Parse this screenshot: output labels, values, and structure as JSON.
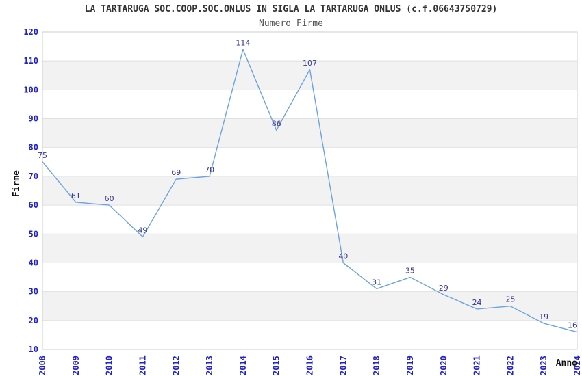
{
  "chart_data": {
    "type": "line",
    "title": "LA TARTARUGA SOC.COOP.SOC.ONLUS IN SIGLA LA TARTARUGA ONLUS (c.f.06643750729)",
    "subtitle": "Numero Firme",
    "xlabel": "Anno",
    "ylabel": "Firme",
    "x": [
      "2008",
      "2009",
      "2010",
      "2011",
      "2012",
      "2013",
      "2014",
      "2015",
      "2016",
      "2017",
      "2018",
      "2019",
      "2020",
      "2021",
      "2022",
      "2023",
      "2024"
    ],
    "series": [
      {
        "name": "Numero Firme",
        "values": [
          75,
          61,
          60,
          49,
          69,
          70,
          114,
          86,
          107,
          40,
          31,
          35,
          29,
          24,
          25,
          19,
          16
        ]
      }
    ],
    "ylim": [
      10,
      120
    ],
    "ytick_step": 10,
    "grid": true,
    "alternating_bands": true,
    "legend_position": "none",
    "point_labels_visible": true,
    "colors": {
      "line": "#6ba3e0",
      "point_label": "#333399",
      "tick_label": "#2222cc",
      "band_fill": "#f2f2f2",
      "grid_line": "#e0e0e0",
      "plot_border": "#cccccc",
      "title": "#333333",
      "subtitle": "#555555",
      "axis_label": "#111111",
      "background": "#ffffff"
    }
  }
}
